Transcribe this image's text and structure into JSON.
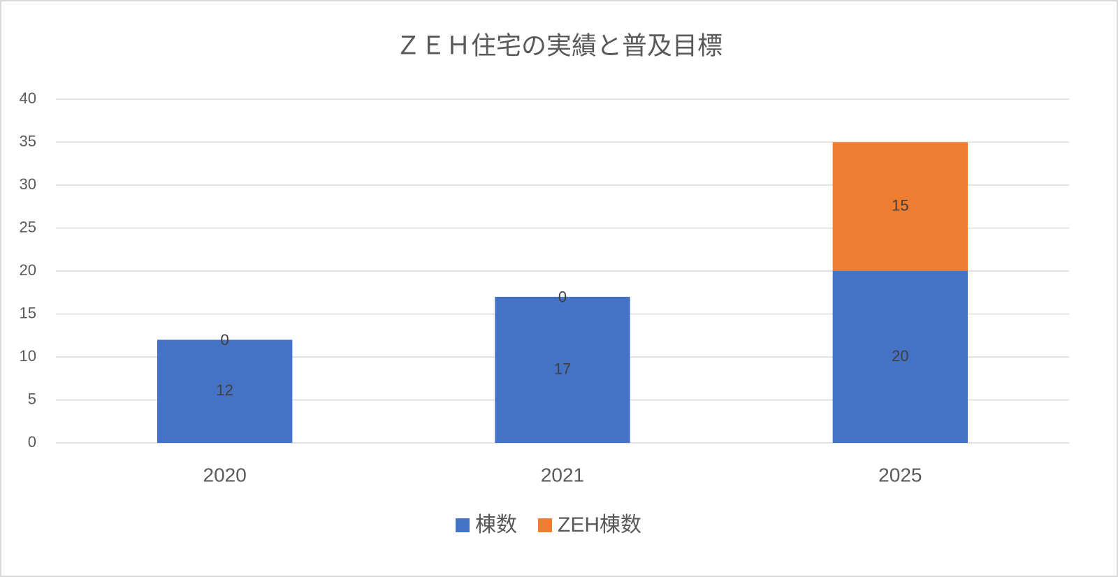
{
  "chart_data": {
    "type": "stacked_bar",
    "title": "ＺＥＨ住宅の実績と普及目標",
    "categories": [
      "2020",
      "2021",
      "2025"
    ],
    "series": [
      {
        "name": "棟数",
        "color": "#4472c4",
        "values": [
          12,
          17,
          20
        ]
      },
      {
        "name": "ZEH棟数",
        "color": "#ed7d31",
        "values": [
          0,
          0,
          15
        ]
      }
    ],
    "ylim": [
      0,
      40
    ],
    "yticks": [
      0,
      5,
      10,
      15,
      20,
      25,
      30,
      35,
      40
    ],
    "grid": true,
    "legend": "bottom"
  }
}
